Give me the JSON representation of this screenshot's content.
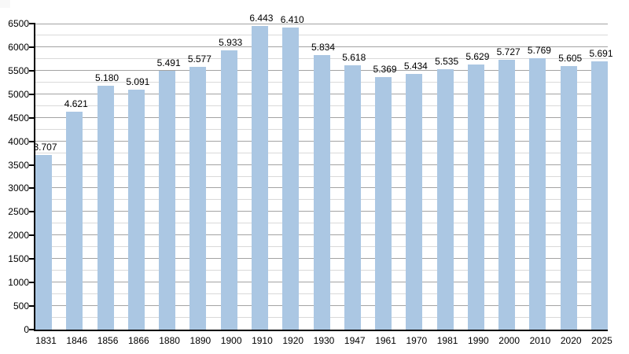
{
  "page": {
    "background": "#ffffff",
    "title": ""
  },
  "chart_data": {
    "type": "bar",
    "title": "",
    "subtitle": "",
    "xlabel": "",
    "ylabel": "",
    "legend": "none",
    "grid": "on",
    "categories": [
      "1831",
      "1846",
      "1856",
      "1866",
      "1880",
      "1890",
      "1900",
      "1910",
      "1920",
      "1930",
      "1947",
      "1961",
      "1970",
      "1981",
      "1990",
      "2000",
      "2010",
      "2020",
      "2025"
    ],
    "values": [
      3707,
      4621,
      5180,
      5091,
      5491,
      5577,
      5933,
      6443,
      6410,
      5834,
      5618,
      5369,
      5434,
      5535,
      5629,
      5727,
      5769,
      5605,
      5691
    ],
    "value_labels": [
      "3.707",
      "4.621",
      "5.180",
      "5.091",
      "5.491",
      "5.577",
      "5.933",
      "6.443",
      "6.410",
      "5.834",
      "5.618",
      "5.369",
      "5.434",
      "5.535",
      "5.629",
      "5.727",
      "5.769",
      "5.605",
      "5.691"
    ],
    "ylim": [
      0,
      6500
    ],
    "y_major_step": 500,
    "y_minor_step": 250,
    "y_tick_values": [
      0,
      500,
      1000,
      1500,
      2000,
      2500,
      3000,
      3500,
      4000,
      4500,
      5000,
      5500,
      6000,
      6500
    ],
    "y_tick_labels": [
      "0",
      "500",
      "1000",
      "1500",
      "2000",
      "2500",
      "3000",
      "3500",
      "4000",
      "4500",
      "5000",
      "5500",
      "6000",
      "6500"
    ],
    "colors": {
      "bar_fill": "#abc7e3",
      "major_gridline": "#a3a3a3",
      "minor_gridline": "#d9d9d9",
      "axis": "#000000",
      "label_text": "#000000"
    }
  }
}
